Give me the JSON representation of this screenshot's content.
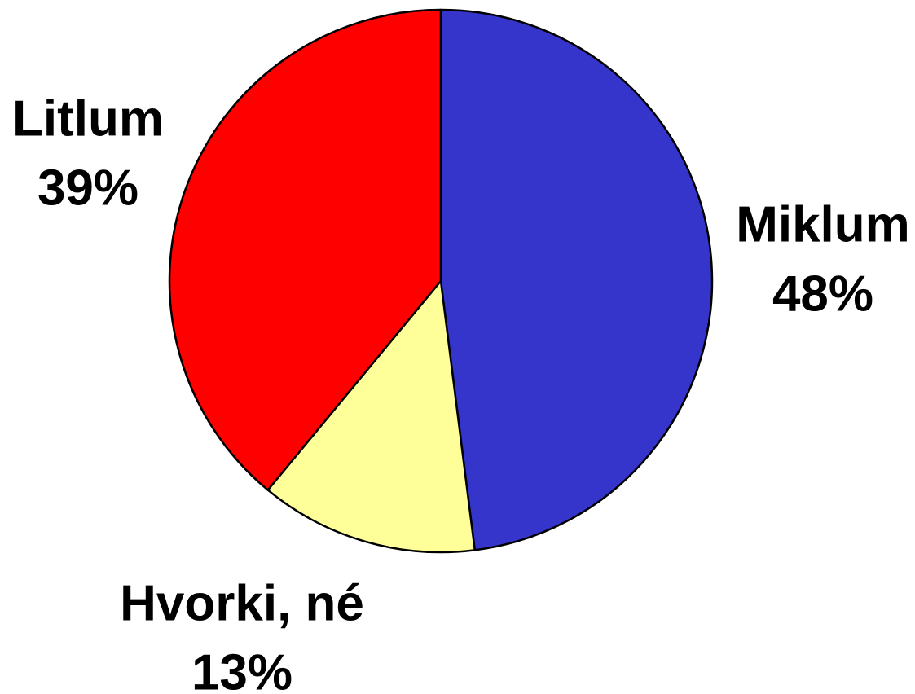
{
  "chart_data": {
    "type": "pie",
    "categories": [
      "Miklum",
      "Hvorki, né",
      "Litlum"
    ],
    "values": [
      48,
      13,
      39
    ],
    "value_labels": [
      "48%",
      "13%",
      "39%"
    ],
    "colors": [
      "#3535cc",
      "#ffff99",
      "#ff0000"
    ]
  }
}
